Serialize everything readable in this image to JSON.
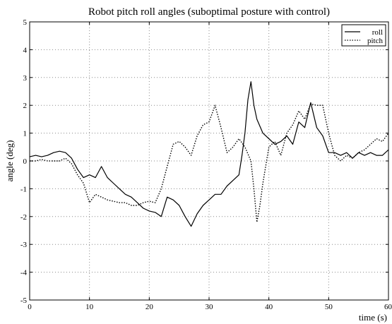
{
  "chart_data": {
    "type": "line",
    "title": "Robot pitch roll angles (suboptimal posture with control)",
    "xlabel": "time (s)",
    "ylabel": "angle (deg)",
    "xlim": [
      0,
      60
    ],
    "ylim": [
      -5,
      5
    ],
    "xticks": [
      "0",
      "10",
      "20",
      "30",
      "40",
      "50",
      "60"
    ],
    "yticks": [
      "5",
      "4",
      "3",
      "2",
      "1",
      "0",
      "-1",
      "-2",
      "-3",
      "-4",
      "-5"
    ],
    "grid": true,
    "legend_position": "top-right",
    "series": [
      {
        "name": "roll",
        "style": "solid",
        "color": "#000000",
        "x": [
          0,
          1,
          2,
          3,
          4,
          5,
          6,
          7,
          8,
          9,
          10,
          11,
          12,
          13,
          14,
          15,
          16,
          17,
          18,
          19,
          20,
          21,
          22,
          23,
          24,
          25,
          26,
          27,
          28,
          29,
          30,
          31,
          32,
          33,
          34,
          35,
          35.5,
          36,
          36.5,
          37,
          37.5,
          38,
          39,
          40,
          41,
          42,
          43,
          44,
          45,
          46,
          47,
          48,
          49,
          50,
          51,
          52,
          53,
          54,
          55,
          56,
          57,
          58,
          59,
          60
        ],
        "values": [
          0.15,
          0.2,
          0.15,
          0.2,
          0.3,
          0.35,
          0.3,
          0.1,
          -0.3,
          -0.6,
          -0.5,
          -0.6,
          -0.2,
          -0.6,
          -0.8,
          -1.0,
          -1.2,
          -1.3,
          -1.5,
          -1.7,
          -1.8,
          -1.85,
          -2.0,
          -1.3,
          -1.4,
          -1.6,
          -2.0,
          -2.35,
          -1.9,
          -1.6,
          -1.4,
          -1.2,
          -1.2,
          -0.9,
          -0.7,
          -0.5,
          0.2,
          1.0,
          2.2,
          2.85,
          2.0,
          1.5,
          1.0,
          0.8,
          0.6,
          0.7,
          0.9,
          0.6,
          1.4,
          1.2,
          2.1,
          1.2,
          0.9,
          0.3,
          0.3,
          0.2,
          0.3,
          0.1,
          0.3,
          0.2,
          0.3,
          0.2,
          0.2,
          0.4
        ]
      },
      {
        "name": "pitch",
        "style": "dotted",
        "color": "#000000",
        "x": [
          0,
          1,
          2,
          3,
          4,
          5,
          6,
          7,
          8,
          9,
          10,
          11,
          12,
          13,
          14,
          15,
          16,
          17,
          18,
          19,
          20,
          21,
          22,
          23,
          24,
          25,
          26,
          27,
          28,
          29,
          30,
          31,
          32,
          33,
          34,
          35,
          36,
          37,
          37.5,
          38,
          38.5,
          39,
          40,
          41,
          42,
          43,
          44,
          45,
          46,
          47,
          48,
          49,
          50,
          51,
          52,
          53,
          54,
          55,
          56,
          57,
          58,
          59,
          60
        ],
        "values": [
          0.0,
          0.0,
          0.05,
          0.0,
          0.0,
          0.0,
          0.1,
          -0.1,
          -0.5,
          -0.8,
          -1.5,
          -1.2,
          -1.3,
          -1.4,
          -1.45,
          -1.5,
          -1.5,
          -1.6,
          -1.6,
          -1.5,
          -1.45,
          -1.5,
          -1.0,
          -0.2,
          0.6,
          0.7,
          0.5,
          0.2,
          0.9,
          1.3,
          1.4,
          2.0,
          1.2,
          0.3,
          0.5,
          0.8,
          0.5,
          0.0,
          -1.0,
          -2.2,
          -1.6,
          -0.8,
          0.5,
          0.7,
          0.2,
          1.0,
          1.3,
          1.8,
          1.5,
          2.05,
          2.0,
          2.0,
          1.0,
          0.2,
          0.0,
          0.2,
          0.1,
          0.3,
          0.4,
          0.6,
          0.8,
          0.7,
          1.0
        ]
      }
    ]
  }
}
